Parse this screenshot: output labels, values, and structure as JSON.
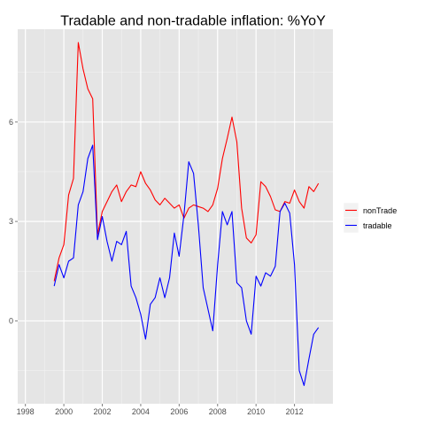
{
  "chart_data": {
    "type": "line",
    "title": "Tradable and non-tradable inflation: %YoY",
    "xlabel": "",
    "ylabel": "",
    "xlim": [
      1997.6,
      2014.0
    ],
    "ylim": [
      -2.5,
      8.8
    ],
    "x_ticks": [
      1998,
      2000,
      2002,
      2004,
      2006,
      2008,
      2010,
      2012
    ],
    "x_tick_labels": [
      "1998",
      "2000",
      "2002",
      "2004",
      "2006",
      "2008",
      "2010",
      "2012"
    ],
    "y_ticks": [
      0,
      3,
      6
    ],
    "y_tick_labels": [
      "0",
      "3",
      "6"
    ],
    "grid": true,
    "legend_position": "right",
    "colors": {
      "panel": "#e5e5e5",
      "grid_major": "#ffffff",
      "grid_minor": "#f2f2f2"
    },
    "series": [
      {
        "name": "nonTrade",
        "color": "#ff0000",
        "x": [
          1999.5,
          1999.75,
          2000.0,
          2000.25,
          2000.5,
          2000.75,
          2001.0,
          2001.25,
          2001.5,
          2001.75,
          2002.0,
          2002.25,
          2002.5,
          2002.75,
          2003.0,
          2003.25,
          2003.5,
          2003.75,
          2004.0,
          2004.25,
          2004.5,
          2004.75,
          2005.0,
          2005.25,
          2005.5,
          2005.75,
          2006.0,
          2006.25,
          2006.5,
          2006.75,
          2007.0,
          2007.25,
          2007.5,
          2007.75,
          2008.0,
          2008.25,
          2008.5,
          2008.75,
          2009.0,
          2009.25,
          2009.5,
          2009.75,
          2010.0,
          2010.25,
          2010.5,
          2010.75,
          2011.0,
          2011.25,
          2011.5,
          2011.75,
          2012.0,
          2012.25,
          2012.5,
          2012.75,
          2013.0,
          2013.25
        ],
        "y": [
          1.2,
          1.9,
          2.3,
          3.8,
          4.3,
          8.4,
          7.6,
          7.0,
          6.7,
          2.6,
          3.3,
          3.6,
          3.9,
          4.1,
          3.6,
          3.9,
          4.1,
          4.05,
          4.5,
          4.15,
          3.95,
          3.65,
          3.5,
          3.7,
          3.55,
          3.4,
          3.5,
          3.1,
          3.4,
          3.5,
          3.45,
          3.4,
          3.3,
          3.5,
          4.0,
          4.9,
          5.5,
          6.15,
          5.4,
          3.4,
          2.5,
          2.35,
          2.6,
          4.2,
          4.05,
          3.75,
          3.35,
          3.3,
          3.6,
          3.55,
          3.95,
          3.6,
          3.4,
          4.05,
          3.9,
          4.15
        ]
      },
      {
        "name": "tradable",
        "color": "#0000ff",
        "x": [
          1999.5,
          1999.75,
          2000.0,
          2000.25,
          2000.5,
          2000.75,
          2001.0,
          2001.25,
          2001.5,
          2001.75,
          2002.0,
          2002.25,
          2002.5,
          2002.75,
          2003.0,
          2003.25,
          2003.5,
          2003.75,
          2004.0,
          2004.25,
          2004.5,
          2004.75,
          2005.0,
          2005.25,
          2005.5,
          2005.75,
          2006.0,
          2006.25,
          2006.5,
          2006.75,
          2007.0,
          2007.25,
          2007.5,
          2007.75,
          2008.0,
          2008.25,
          2008.5,
          2008.75,
          2009.0,
          2009.25,
          2009.5,
          2009.75,
          2010.0,
          2010.25,
          2010.5,
          2010.75,
          2011.0,
          2011.25,
          2011.5,
          2011.75,
          2012.0,
          2012.25,
          2012.5,
          2012.75,
          2013.0,
          2013.25
        ],
        "y": [
          1.05,
          1.7,
          1.3,
          1.8,
          1.9,
          3.5,
          3.9,
          4.9,
          5.3,
          2.45,
          3.15,
          2.4,
          1.8,
          2.4,
          2.3,
          2.7,
          1.05,
          0.7,
          0.2,
          -0.55,
          0.5,
          0.7,
          1.3,
          0.7,
          1.3,
          2.65,
          1.95,
          3.2,
          4.8,
          4.45,
          2.9,
          1.0,
          0.35,
          -0.3,
          1.7,
          3.3,
          2.9,
          3.3,
          1.15,
          1.0,
          0.0,
          -0.4,
          1.35,
          1.05,
          1.45,
          1.35,
          1.65,
          3.3,
          3.55,
          3.25,
          1.7,
          -1.5,
          -1.95,
          -1.15,
          -0.4,
          -0.2
        ]
      }
    ]
  }
}
